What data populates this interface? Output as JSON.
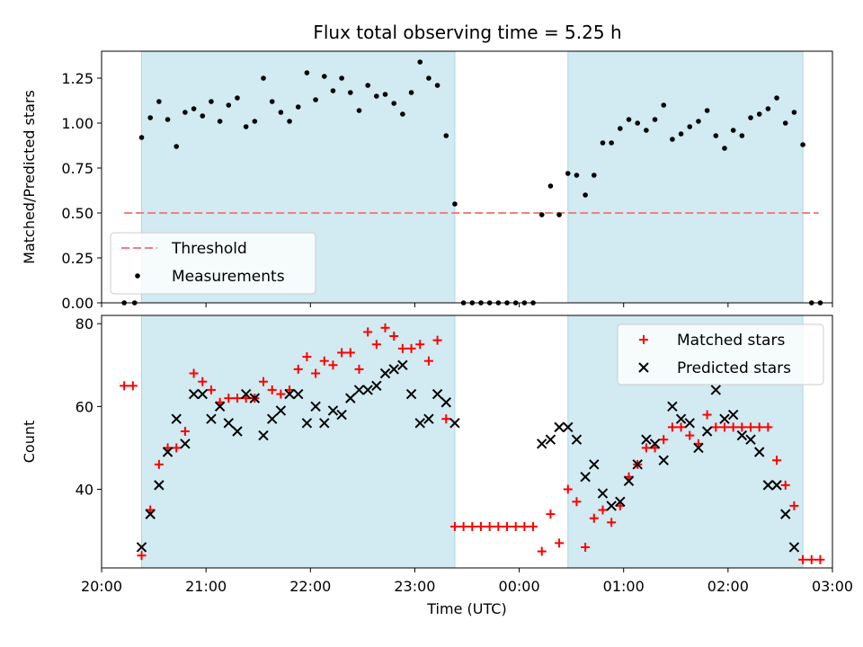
{
  "title": "Flux total observing time = 5.25 h",
  "chart_data": [
    {
      "type": "scatter",
      "panel": "top",
      "ylabel": "Matched/Predicted stars",
      "ylim": [
        0,
        1.4
      ],
      "yticks": [
        0,
        0.25,
        0.5,
        0.75,
        1.0,
        1.25
      ],
      "yticklabels": [
        "0.00",
        "0.25",
        "0.50",
        "0.75",
        "1.00",
        "1.25"
      ],
      "xlim": [
        "20:00",
        "03:00"
      ],
      "grid": false,
      "legend": "lower-left",
      "legend_entries": [
        "Threshold",
        "Measurements"
      ],
      "threshold": {
        "name": "Threshold",
        "value": 0.5,
        "x_start": "20:13",
        "x_end": "02:52",
        "color": "#f08080"
      },
      "series": [
        {
          "name": "Measurements",
          "color": "#000000",
          "points": [
            [
              "20:13",
              0.0
            ],
            [
              "20:19",
              0.0
            ],
            [
              "20:23",
              0.92
            ],
            [
              "20:28",
              1.03
            ],
            [
              "20:33",
              1.12
            ],
            [
              "20:38",
              1.02
            ],
            [
              "20:43",
              0.87
            ],
            [
              "20:48",
              1.06
            ],
            [
              "20:53",
              1.08
            ],
            [
              "20:58",
              1.04
            ],
            [
              "21:03",
              1.12
            ],
            [
              "21:08",
              1.01
            ],
            [
              "21:13",
              1.1
            ],
            [
              "21:18",
              1.14
            ],
            [
              "21:23",
              0.98
            ],
            [
              "21:28",
              1.01
            ],
            [
              "21:33",
              1.25
            ],
            [
              "21:38",
              1.12
            ],
            [
              "21:43",
              1.06
            ],
            [
              "21:48",
              1.01
            ],
            [
              "21:53",
              1.09
            ],
            [
              "21:58",
              1.28
            ],
            [
              "22:03",
              1.13
            ],
            [
              "22:08",
              1.26
            ],
            [
              "22:13",
              1.18
            ],
            [
              "22:18",
              1.25
            ],
            [
              "22:23",
              1.17
            ],
            [
              "22:28",
              1.07
            ],
            [
              "22:33",
              1.21
            ],
            [
              "22:38",
              1.15
            ],
            [
              "22:43",
              1.16
            ],
            [
              "22:48",
              1.11
            ],
            [
              "22:53",
              1.05
            ],
            [
              "22:58",
              1.17
            ],
            [
              "23:03",
              1.34
            ],
            [
              "23:08",
              1.25
            ],
            [
              "23:13",
              1.21
            ],
            [
              "23:18",
              0.93
            ],
            [
              "23:23",
              0.55
            ],
            [
              "23:28",
              0.0
            ],
            [
              "23:33",
              0.0
            ],
            [
              "23:38",
              0.0
            ],
            [
              "23:43",
              0.0
            ],
            [
              "23:48",
              0.0
            ],
            [
              "23:53",
              0.0
            ],
            [
              "23:58",
              0.0
            ],
            [
              "00:03",
              0.0
            ],
            [
              "00:08",
              0.0
            ],
            [
              "00:13",
              0.49
            ],
            [
              "00:18",
              0.65
            ],
            [
              "00:23",
              0.49
            ],
            [
              "00:28",
              0.72
            ],
            [
              "00:33",
              0.71
            ],
            [
              "00:38",
              0.6
            ],
            [
              "00:43",
              0.71
            ],
            [
              "00:48",
              0.89
            ],
            [
              "00:53",
              0.89
            ],
            [
              "00:58",
              0.97
            ],
            [
              "01:03",
              1.02
            ],
            [
              "01:08",
              1.0
            ],
            [
              "01:13",
              0.96
            ],
            [
              "01:18",
              1.02
            ],
            [
              "01:23",
              1.1
            ],
            [
              "01:28",
              0.91
            ],
            [
              "01:33",
              0.94
            ],
            [
              "01:38",
              0.98
            ],
            [
              "01:43",
              1.01
            ],
            [
              "01:48",
              1.07
            ],
            [
              "01:53",
              0.93
            ],
            [
              "01:58",
              0.86
            ],
            [
              "02:03",
              0.96
            ],
            [
              "02:08",
              0.93
            ],
            [
              "02:13",
              1.03
            ],
            [
              "02:18",
              1.05
            ],
            [
              "02:23",
              1.08
            ],
            [
              "02:28",
              1.14
            ],
            [
              "02:33",
              1.0
            ],
            [
              "02:38",
              1.06
            ],
            [
              "02:43",
              0.88
            ],
            [
              "02:48",
              0.0
            ],
            [
              "02:53",
              0.0
            ]
          ]
        }
      ]
    },
    {
      "type": "scatter",
      "panel": "bottom",
      "ylabel": "Count",
      "xlabel": "Time (UTC)",
      "ylim": [
        21,
        82
      ],
      "yticks": [
        40,
        60,
        80
      ],
      "xlim": [
        "20:00",
        "03:00"
      ],
      "xticks": [
        "20:00",
        "21:00",
        "22:00",
        "23:00",
        "00:00",
        "01:00",
        "02:00",
        "03:00"
      ],
      "grid": false,
      "legend": "top-right",
      "legend_entries": [
        "Matched stars",
        "Predicted stars"
      ],
      "series": [
        {
          "name": "Matched stars",
          "marker": "+",
          "color": "#ff0000",
          "points": [
            [
              "20:13",
              65
            ],
            [
              "20:18",
              65
            ],
            [
              "20:23",
              24
            ],
            [
              "20:28",
              35
            ],
            [
              "20:33",
              46
            ],
            [
              "20:38",
              50
            ],
            [
              "20:43",
              50
            ],
            [
              "20:48",
              54
            ],
            [
              "20:53",
              68
            ],
            [
              "20:58",
              66
            ],
            [
              "21:03",
              64
            ],
            [
              "21:08",
              61
            ],
            [
              "21:13",
              62
            ],
            [
              "21:18",
              62
            ],
            [
              "21:23",
              62
            ],
            [
              "21:28",
              62
            ],
            [
              "21:33",
              66
            ],
            [
              "21:38",
              64
            ],
            [
              "21:43",
              63
            ],
            [
              "21:48",
              64
            ],
            [
              "21:53",
              69
            ],
            [
              "21:58",
              72
            ],
            [
              "22:03",
              68
            ],
            [
              "22:08",
              71
            ],
            [
              "22:13",
              70
            ],
            [
              "22:18",
              73
            ],
            [
              "22:23",
              73
            ],
            [
              "22:28",
              69
            ],
            [
              "22:33",
              78
            ],
            [
              "22:38",
              75
            ],
            [
              "22:43",
              79
            ],
            [
              "22:48",
              77
            ],
            [
              "22:53",
              74
            ],
            [
              "22:58",
              74
            ],
            [
              "23:03",
              75
            ],
            [
              "23:08",
              71
            ],
            [
              "23:13",
              76
            ],
            [
              "23:18",
              57
            ],
            [
              "23:23",
              31
            ],
            [
              "23:28",
              31
            ],
            [
              "23:33",
              31
            ],
            [
              "23:38",
              31
            ],
            [
              "23:43",
              31
            ],
            [
              "23:48",
              31
            ],
            [
              "23:53",
              31
            ],
            [
              "23:58",
              31
            ],
            [
              "00:03",
              31
            ],
            [
              "00:08",
              31
            ],
            [
              "00:13",
              25
            ],
            [
              "00:18",
              34
            ],
            [
              "00:23",
              27
            ],
            [
              "00:28",
              40
            ],
            [
              "00:33",
              37
            ],
            [
              "00:38",
              26
            ],
            [
              "00:43",
              33
            ],
            [
              "00:48",
              35
            ],
            [
              "00:53",
              32
            ],
            [
              "00:58",
              36
            ],
            [
              "01:03",
              43
            ],
            [
              "01:08",
              46
            ],
            [
              "01:13",
              50
            ],
            [
              "01:18",
              50
            ],
            [
              "01:23",
              52
            ],
            [
              "01:28",
              55
            ],
            [
              "01:33",
              55
            ],
            [
              "01:38",
              53
            ],
            [
              "01:43",
              51
            ],
            [
              "01:48",
              58
            ],
            [
              "01:53",
              55
            ],
            [
              "01:58",
              55
            ],
            [
              "02:03",
              55
            ],
            [
              "02:08",
              55
            ],
            [
              "02:13",
              55
            ],
            [
              "02:18",
              55
            ],
            [
              "02:23",
              55
            ],
            [
              "02:28",
              47
            ],
            [
              "02:33",
              41
            ],
            [
              "02:38",
              36
            ],
            [
              "02:43",
              23
            ],
            [
              "02:48",
              23
            ],
            [
              "02:53",
              23
            ]
          ]
        },
        {
          "name": "Predicted stars",
          "marker": "x",
          "color": "#000000",
          "points": [
            [
              "20:23",
              26
            ],
            [
              "20:28",
              34
            ],
            [
              "20:33",
              41
            ],
            [
              "20:38",
              49
            ],
            [
              "20:43",
              57
            ],
            [
              "20:48",
              51
            ],
            [
              "20:53",
              63
            ],
            [
              "20:58",
              63
            ],
            [
              "21:03",
              57
            ],
            [
              "21:08",
              60
            ],
            [
              "21:13",
              56
            ],
            [
              "21:18",
              54
            ],
            [
              "21:23",
              63
            ],
            [
              "21:28",
              62
            ],
            [
              "21:33",
              53
            ],
            [
              "21:38",
              57
            ],
            [
              "21:43",
              59
            ],
            [
              "21:48",
              63
            ],
            [
              "21:53",
              63
            ],
            [
              "21:58",
              56
            ],
            [
              "22:03",
              60
            ],
            [
              "22:08",
              56
            ],
            [
              "22:13",
              59
            ],
            [
              "22:18",
              58
            ],
            [
              "22:23",
              62
            ],
            [
              "22:28",
              64
            ],
            [
              "22:33",
              64
            ],
            [
              "22:38",
              65
            ],
            [
              "22:43",
              68
            ],
            [
              "22:48",
              69
            ],
            [
              "22:53",
              70
            ],
            [
              "22:58",
              63
            ],
            [
              "23:03",
              56
            ],
            [
              "23:08",
              57
            ],
            [
              "23:13",
              63
            ],
            [
              "23:18",
              61
            ],
            [
              "23:23",
              56
            ],
            [
              "00:13",
              51
            ],
            [
              "00:18",
              52
            ],
            [
              "00:23",
              55
            ],
            [
              "00:28",
              55
            ],
            [
              "00:33",
              52
            ],
            [
              "00:38",
              43
            ],
            [
              "00:43",
              46
            ],
            [
              "00:48",
              39
            ],
            [
              "00:53",
              36
            ],
            [
              "00:58",
              37
            ],
            [
              "01:03",
              42
            ],
            [
              "01:08",
              46
            ],
            [
              "01:13",
              52
            ],
            [
              "01:18",
              51
            ],
            [
              "01:23",
              47
            ],
            [
              "01:28",
              60
            ],
            [
              "01:33",
              57
            ],
            [
              "01:38",
              56
            ],
            [
              "01:43",
              50
            ],
            [
              "01:48",
              54
            ],
            [
              "01:53",
              64
            ],
            [
              "01:58",
              57
            ],
            [
              "02:03",
              58
            ],
            [
              "02:08",
              53
            ],
            [
              "02:13",
              52
            ],
            [
              "02:18",
              49
            ],
            [
              "02:23",
              41
            ],
            [
              "02:28",
              41
            ],
            [
              "02:33",
              34
            ],
            [
              "02:38",
              26
            ]
          ]
        }
      ]
    }
  ],
  "observing_windows": [
    [
      "20:23",
      "23:23"
    ],
    [
      "00:28",
      "02:43"
    ]
  ],
  "window_color": "#add8e6"
}
